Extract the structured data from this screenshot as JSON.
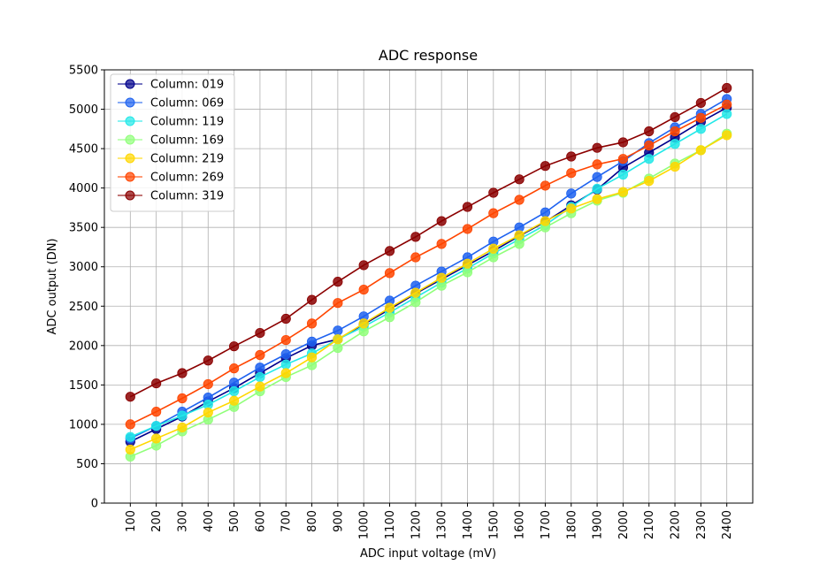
{
  "chart_data": {
    "type": "line",
    "title": "ADC response",
    "xlabel": "ADC input voltage (mV)",
    "ylabel": "ADC output (DN)",
    "x": [
      100,
      200,
      300,
      400,
      500,
      600,
      700,
      800,
      900,
      1000,
      1100,
      1200,
      1300,
      1400,
      1500,
      1600,
      1700,
      1800,
      1900,
      2000,
      2100,
      2200,
      2300,
      2400
    ],
    "xlim": [
      0,
      2500
    ],
    "ylim": [
      0,
      5500
    ],
    "yticks": [
      0,
      500,
      1000,
      1500,
      2000,
      2500,
      3000,
      3500,
      4000,
      4500,
      5000,
      5500
    ],
    "xtick_rotation": 90,
    "grid": true,
    "legend_loc": "top-left",
    "series": [
      {
        "name": "Column: 019",
        "color": "#00008b",
        "values": [
          780,
          940,
          1100,
          1290,
          1460,
          1650,
          1840,
          2000,
          2080,
          2270,
          2460,
          2660,
          2840,
          3020,
          3200,
          3390,
          3570,
          3780,
          3980,
          4260,
          4450,
          4640,
          4840,
          5020
        ]
      },
      {
        "name": "Column: 069",
        "color": "#1e62f0",
        "values": [
          820,
          980,
          1160,
          1340,
          1530,
          1720,
          1890,
          2050,
          2190,
          2370,
          2570,
          2760,
          2940,
          3120,
          3320,
          3500,
          3690,
          3930,
          4140,
          4340,
          4570,
          4770,
          4940,
          5130
        ]
      },
      {
        "name": "Column: 119",
        "color": "#22e8e8",
        "values": [
          840,
          980,
          1110,
          1250,
          1420,
          1600,
          1760,
          1900,
          2080,
          2240,
          2420,
          2610,
          2800,
          2980,
          3170,
          3350,
          3530,
          3760,
          3990,
          4170,
          4370,
          4560,
          4750,
          4940
        ]
      },
      {
        "name": "Column: 169",
        "color": "#90ff7a",
        "values": [
          590,
          730,
          910,
          1060,
          1220,
          1420,
          1600,
          1750,
          1970,
          2180,
          2360,
          2550,
          2760,
          2930,
          3120,
          3290,
          3500,
          3680,
          3840,
          3940,
          4120,
          4310,
          4480,
          4690
        ]
      },
      {
        "name": "Column: 219",
        "color": "#ffd700",
        "values": [
          680,
          820,
          960,
          1150,
          1300,
          1480,
          1650,
          1850,
          2080,
          2280,
          2480,
          2670,
          2860,
          3040,
          3230,
          3400,
          3580,
          3740,
          3860,
          3950,
          4090,
          4270,
          4480,
          4670
        ]
      },
      {
        "name": "Column: 269",
        "color": "#ff4500",
        "values": [
          1000,
          1160,
          1330,
          1510,
          1710,
          1880,
          2070,
          2280,
          2540,
          2710,
          2920,
          3120,
          3290,
          3480,
          3680,
          3850,
          4030,
          4190,
          4300,
          4370,
          4540,
          4720,
          4890,
          5060
        ]
      },
      {
        "name": "Column: 319",
        "color": "#8b0000",
        "values": [
          1350,
          1520,
          1650,
          1810,
          1990,
          2160,
          2340,
          2580,
          2810,
          3020,
          3200,
          3380,
          3580,
          3760,
          3940,
          4110,
          4280,
          4400,
          4510,
          4580,
          4720,
          4900,
          5080,
          5270
        ]
      }
    ]
  }
}
